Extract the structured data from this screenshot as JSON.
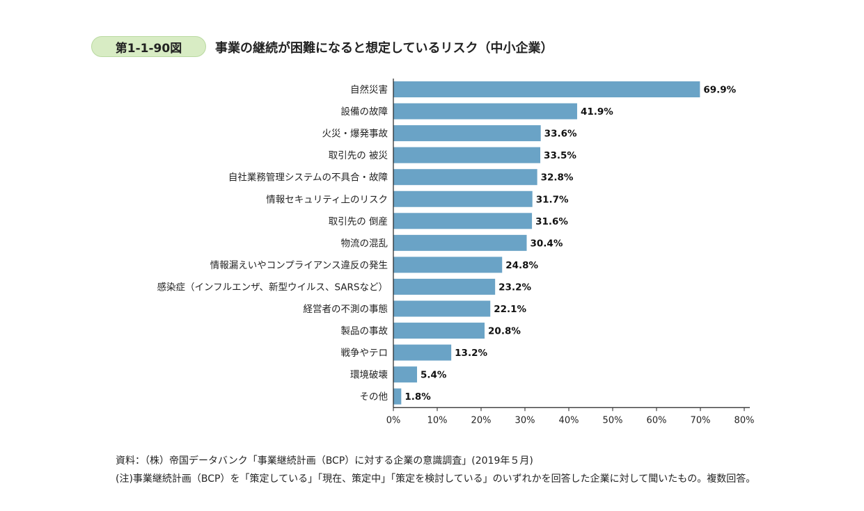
{
  "figure": {
    "number": "第1-1-90図",
    "title": "事業の継続が困難になると想定しているリスク（中小企業）"
  },
  "colors": {
    "bar": "#6aa3c6",
    "axis": "#222222",
    "badge": "#d8ecc4"
  },
  "chart_data": {
    "type": "bar",
    "orientation": "horizontal",
    "categories": [
      "自然災害",
      "設備の故障",
      "火災・爆発事故",
      "取引先の 被災",
      "自社業務管理システムの不具合・故障",
      "情報セキュリティ上のリスク",
      "取引先の 倒産",
      "物流の混乱",
      "情報漏えいやコンプライアンス違反の発生",
      "感染症（インフルエンザ、新型ウイルス、SARSなど）",
      "経営者の不測の事態",
      "製品の事故",
      "戦争やテロ",
      "環境破壊",
      "その他"
    ],
    "values": [
      69.9,
      41.9,
      33.6,
      33.5,
      32.8,
      31.7,
      31.6,
      30.4,
      24.8,
      23.2,
      22.1,
      20.8,
      13.2,
      5.4,
      1.8
    ],
    "value_labels": [
      "69.9%",
      "41.9%",
      "33.6%",
      "33.5%",
      "32.8%",
      "31.7%",
      "31.6%",
      "30.4%",
      "24.8%",
      "23.2%",
      "22.1%",
      "20.8%",
      "13.2%",
      "5.4%",
      "1.8%"
    ],
    "xticks": [
      "0%",
      "10%",
      "20%",
      "30%",
      "40%",
      "50%",
      "60%",
      "70%",
      "80%"
    ],
    "xlim": [
      0,
      80
    ],
    "grid": false,
    "legend": "none"
  },
  "notes": {
    "source": "資料：（株）帝国データバンク「事業継続計画（BCP）に対する企業の意識調査」(2019年５月)",
    "note": "(注)事業継続計画（BCP）を「策定している」「現在、策定中」「策定を検討している」のいずれかを回答した企業に対して聞いたもの。複数回答。"
  }
}
